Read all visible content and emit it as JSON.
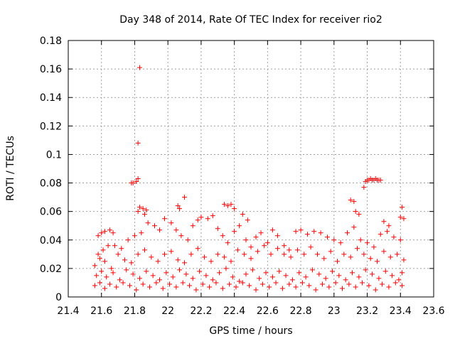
{
  "chart_data": {
    "type": "scatter",
    "title": "Day 348 of 2014, Rate Of TEC Index for receiver rio2",
    "xlabel": "GPS time / hours",
    "ylabel": "ROTI / TECUs",
    "xlim": [
      21.4,
      23.6
    ],
    "ylim": [
      0,
      0.18
    ],
    "xticks": [
      "21.4",
      "21.6",
      "21.8",
      "22",
      "22.2",
      "22.4",
      "22.6",
      "22.8",
      "23",
      "23.2",
      "23.4",
      "23.6"
    ],
    "yticks": [
      "0",
      "0.02",
      "0.04",
      "0.06",
      "0.08",
      "0.1",
      "0.12",
      "0.14",
      "0.16",
      "0.18"
    ],
    "grid": true,
    "marker": "+",
    "color": "#ff0000",
    "x_range_observed": [
      21.55,
      23.42
    ],
    "series": [
      {
        "name": "ROTI",
        "points": [
          [
            21.83,
            0.161
          ],
          [
            21.82,
            0.108
          ],
          [
            21.78,
            0.08
          ],
          [
            21.79,
            0.08
          ],
          [
            21.81,
            0.081
          ],
          [
            21.82,
            0.083
          ],
          [
            21.82,
            0.06
          ],
          [
            21.83,
            0.063
          ],
          [
            21.85,
            0.062
          ],
          [
            21.87,
            0.061
          ],
          [
            21.86,
            0.058
          ],
          [
            23.18,
            0.077
          ],
          [
            23.19,
            0.081
          ],
          [
            23.2,
            0.082
          ],
          [
            23.21,
            0.082
          ],
          [
            23.22,
            0.083
          ],
          [
            23.23,
            0.082
          ],
          [
            23.24,
            0.082
          ],
          [
            23.25,
            0.083
          ],
          [
            23.26,
            0.082
          ],
          [
            23.27,
            0.082
          ],
          [
            23.28,
            0.082
          ],
          [
            22.1,
            0.07
          ],
          [
            22.06,
            0.064
          ],
          [
            22.07,
            0.062
          ],
          [
            22.34,
            0.065
          ],
          [
            22.36,
            0.064
          ],
          [
            22.38,
            0.065
          ],
          [
            22.4,
            0.062
          ],
          [
            22.45,
            0.058
          ],
          [
            22.48,
            0.054
          ],
          [
            23.1,
            0.068
          ],
          [
            23.12,
            0.067
          ],
          [
            23.13,
            0.06
          ],
          [
            23.15,
            0.058
          ],
          [
            23.41,
            0.063
          ],
          [
            23.4,
            0.056
          ],
          [
            23.42,
            0.055
          ],
          [
            23.3,
            0.053
          ],
          [
            23.33,
            0.05
          ],
          [
            21.58,
            0.043
          ],
          [
            21.6,
            0.045
          ],
          [
            21.62,
            0.046
          ],
          [
            21.65,
            0.047
          ],
          [
            21.67,
            0.045
          ],
          [
            21.58,
            0.03
          ],
          [
            21.61,
            0.033
          ],
          [
            21.64,
            0.036
          ],
          [
            21.68,
            0.036
          ],
          [
            21.72,
            0.034
          ],
          [
            21.76,
            0.04
          ],
          [
            21.8,
            0.043
          ],
          [
            21.84,
            0.045
          ],
          [
            21.88,
            0.052
          ],
          [
            21.92,
            0.05
          ],
          [
            21.95,
            0.047
          ],
          [
            21.98,
            0.055
          ],
          [
            22.02,
            0.052
          ],
          [
            22.05,
            0.047
          ],
          [
            22.08,
            0.043
          ],
          [
            22.12,
            0.04
          ],
          [
            22.15,
            0.05
          ],
          [
            22.18,
            0.054
          ],
          [
            22.2,
            0.056
          ],
          [
            22.24,
            0.055
          ],
          [
            22.27,
            0.057
          ],
          [
            22.3,
            0.048
          ],
          [
            22.33,
            0.043
          ],
          [
            22.36,
            0.038
          ],
          [
            22.4,
            0.046
          ],
          [
            22.43,
            0.05
          ],
          [
            22.47,
            0.04
          ],
          [
            22.5,
            0.035
          ],
          [
            22.53,
            0.042
          ],
          [
            22.56,
            0.045
          ],
          [
            22.6,
            0.038
          ],
          [
            22.63,
            0.047
          ],
          [
            22.66,
            0.043
          ],
          [
            22.7,
            0.036
          ],
          [
            22.73,
            0.033
          ],
          [
            22.77,
            0.046
          ],
          [
            22.8,
            0.047
          ],
          [
            22.84,
            0.044
          ],
          [
            22.88,
            0.046
          ],
          [
            22.92,
            0.045
          ],
          [
            22.96,
            0.042
          ],
          [
            23.0,
            0.04
          ],
          [
            23.04,
            0.038
          ],
          [
            23.08,
            0.045
          ],
          [
            23.12,
            0.049
          ],
          [
            23.16,
            0.04
          ],
          [
            23.2,
            0.038
          ],
          [
            23.24,
            0.035
          ],
          [
            23.28,
            0.044
          ],
          [
            23.32,
            0.046
          ],
          [
            23.36,
            0.042
          ],
          [
            23.4,
            0.04
          ],
          [
            21.56,
            0.022
          ],
          [
            21.59,
            0.027
          ],
          [
            21.62,
            0.025
          ],
          [
            21.66,
            0.02
          ],
          [
            21.7,
            0.03
          ],
          [
            21.74,
            0.026
          ],
          [
            21.78,
            0.024
          ],
          [
            21.82,
            0.03
          ],
          [
            21.86,
            0.033
          ],
          [
            21.9,
            0.028
          ],
          [
            21.94,
            0.025
          ],
          [
            21.98,
            0.03
          ],
          [
            22.02,
            0.032
          ],
          [
            22.06,
            0.026
          ],
          [
            22.1,
            0.024
          ],
          [
            22.14,
            0.03
          ],
          [
            22.18,
            0.034
          ],
          [
            22.22,
            0.028
          ],
          [
            22.26,
            0.025
          ],
          [
            22.3,
            0.03
          ],
          [
            22.34,
            0.028
          ],
          [
            22.38,
            0.025
          ],
          [
            22.42,
            0.033
          ],
          [
            22.46,
            0.03
          ],
          [
            22.5,
            0.027
          ],
          [
            22.54,
            0.032
          ],
          [
            22.58,
            0.036
          ],
          [
            22.62,
            0.03
          ],
          [
            22.66,
            0.034
          ],
          [
            22.7,
            0.03
          ],
          [
            22.74,
            0.028
          ],
          [
            22.78,
            0.033
          ],
          [
            22.82,
            0.03
          ],
          [
            22.86,
            0.035
          ],
          [
            22.9,
            0.03
          ],
          [
            22.94,
            0.027
          ],
          [
            22.98,
            0.032
          ],
          [
            23.02,
            0.025
          ],
          [
            23.06,
            0.03
          ],
          [
            23.1,
            0.028
          ],
          [
            23.14,
            0.034
          ],
          [
            23.18,
            0.03
          ],
          [
            23.22,
            0.027
          ],
          [
            23.26,
            0.025
          ],
          [
            23.3,
            0.032
          ],
          [
            23.34,
            0.028
          ],
          [
            23.38,
            0.03
          ],
          [
            23.42,
            0.026
          ],
          [
            21.57,
            0.015
          ],
          [
            21.6,
            0.018
          ],
          [
            21.63,
            0.014
          ],
          [
            21.67,
            0.017
          ],
          [
            21.71,
            0.012
          ],
          [
            21.75,
            0.019
          ],
          [
            21.79,
            0.016
          ],
          [
            21.83,
            0.013
          ],
          [
            21.87,
            0.018
          ],
          [
            21.91,
            0.015
          ],
          [
            21.95,
            0.012
          ],
          [
            21.99,
            0.017
          ],
          [
            22.03,
            0.014
          ],
          [
            22.07,
            0.019
          ],
          [
            22.11,
            0.016
          ],
          [
            22.15,
            0.013
          ],
          [
            22.19,
            0.018
          ],
          [
            22.23,
            0.015
          ],
          [
            22.27,
            0.012
          ],
          [
            22.31,
            0.017
          ],
          [
            22.35,
            0.02
          ],
          [
            22.39,
            0.014
          ],
          [
            22.43,
            0.011
          ],
          [
            22.47,
            0.016
          ],
          [
            22.51,
            0.019
          ],
          [
            22.55,
            0.013
          ],
          [
            22.59,
            0.017
          ],
          [
            22.63,
            0.014
          ],
          [
            22.67,
            0.018
          ],
          [
            22.71,
            0.015
          ],
          [
            22.75,
            0.012
          ],
          [
            22.79,
            0.017
          ],
          [
            22.83,
            0.014
          ],
          [
            22.87,
            0.019
          ],
          [
            22.91,
            0.016
          ],
          [
            22.95,
            0.013
          ],
          [
            22.99,
            0.018
          ],
          [
            23.03,
            0.015
          ],
          [
            23.07,
            0.012
          ],
          [
            23.11,
            0.017
          ],
          [
            23.15,
            0.014
          ],
          [
            23.19,
            0.019
          ],
          [
            23.23,
            0.016
          ],
          [
            23.27,
            0.013
          ],
          [
            23.31,
            0.018
          ],
          [
            23.35,
            0.015
          ],
          [
            23.39,
            0.012
          ],
          [
            23.41,
            0.017
          ],
          [
            21.56,
            0.008
          ],
          [
            21.59,
            0.01
          ],
          [
            21.62,
            0.006
          ],
          [
            21.65,
            0.009
          ],
          [
            21.69,
            0.007
          ],
          [
            21.73,
            0.01
          ],
          [
            21.77,
            0.008
          ],
          [
            21.81,
            0.005
          ],
          [
            21.85,
            0.009
          ],
          [
            21.89,
            0.007
          ],
          [
            21.93,
            0.01
          ],
          [
            21.97,
            0.006
          ],
          [
            22.01,
            0.009
          ],
          [
            22.05,
            0.007
          ],
          [
            22.09,
            0.01
          ],
          [
            22.13,
            0.008
          ],
          [
            22.17,
            0.005
          ],
          [
            22.21,
            0.009
          ],
          [
            22.25,
            0.007
          ],
          [
            22.29,
            0.01
          ],
          [
            22.33,
            0.006
          ],
          [
            22.37,
            0.009
          ],
          [
            22.41,
            0.007
          ],
          [
            22.45,
            0.01
          ],
          [
            22.49,
            0.008
          ],
          [
            22.53,
            0.005
          ],
          [
            22.57,
            0.009
          ],
          [
            22.61,
            0.007
          ],
          [
            22.65,
            0.01
          ],
          [
            22.69,
            0.006
          ],
          [
            22.73,
            0.009
          ],
          [
            22.77,
            0.007
          ],
          [
            22.81,
            0.01
          ],
          [
            22.85,
            0.008
          ],
          [
            22.89,
            0.005
          ],
          [
            22.93,
            0.009
          ],
          [
            22.97,
            0.007
          ],
          [
            23.01,
            0.01
          ],
          [
            23.05,
            0.006
          ],
          [
            23.09,
            0.009
          ],
          [
            23.13,
            0.007
          ],
          [
            23.17,
            0.01
          ],
          [
            23.21,
            0.008
          ],
          [
            23.25,
            0.005
          ],
          [
            23.29,
            0.009
          ],
          [
            23.33,
            0.007
          ],
          [
            23.37,
            0.01
          ],
          [
            23.41,
            0.008
          ]
        ]
      }
    ]
  }
}
